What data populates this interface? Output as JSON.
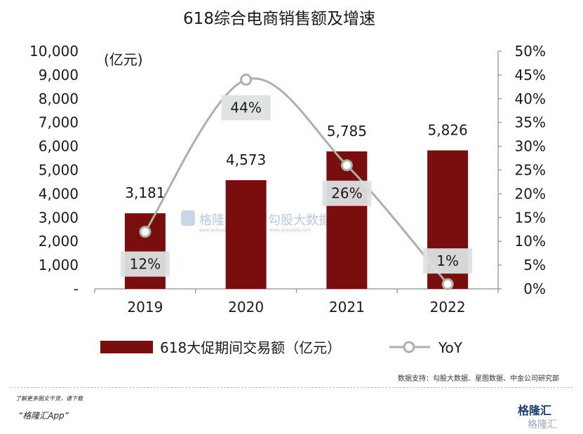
{
  "chart_data": {
    "type": "bar",
    "title": "618综合电商销售额及增速",
    "categories": [
      "2019",
      "2020",
      "2021",
      "2022"
    ],
    "series": [
      {
        "name": "618大促期间交易额（亿元）",
        "type": "bar",
        "values": [
          3181,
          4573,
          5785,
          5826
        ],
        "labels": [
          "3,181",
          "4,573",
          "5,785",
          "5,826"
        ],
        "color": "#7a0d0d"
      },
      {
        "name": "YoY",
        "type": "line",
        "axis": "right",
        "values": [
          12,
          44,
          26,
          1
        ],
        "labels": [
          "12%",
          "44%",
          "26%",
          "1%"
        ],
        "color": "#a8b4a6"
      }
    ],
    "left_axis": {
      "unit": "(亿元)",
      "ylim": [
        0,
        10000
      ],
      "ticks": [
        "-",
        "1,000",
        "2,000",
        "3,000",
        "4,000",
        "5,000",
        "6,000",
        "7,000",
        "8,000",
        "9,000",
        "10,000"
      ]
    },
    "right_axis": {
      "ylim": [
        0,
        50
      ],
      "ticks": [
        "0%",
        "5%",
        "10%",
        "15%",
        "20%",
        "25%",
        "30%",
        "35%",
        "40%",
        "45%",
        "50%"
      ]
    },
    "grid": false,
    "legend_position": "bottom",
    "source": "数据支持：勾股大数据、星图数据、中金公司研究部"
  },
  "watermark": {
    "brand": "格隆汇",
    "data_brand": "勾股大数据",
    "data_url": "www.gogudata.com",
    "brand_url": "www.gelonghui.com"
  },
  "footer": {
    "line1": "了解更多图文干货，请下载",
    "line2": "“格隆汇App”",
    "logo": "格隆汇",
    "logo2": "格隆汇"
  }
}
